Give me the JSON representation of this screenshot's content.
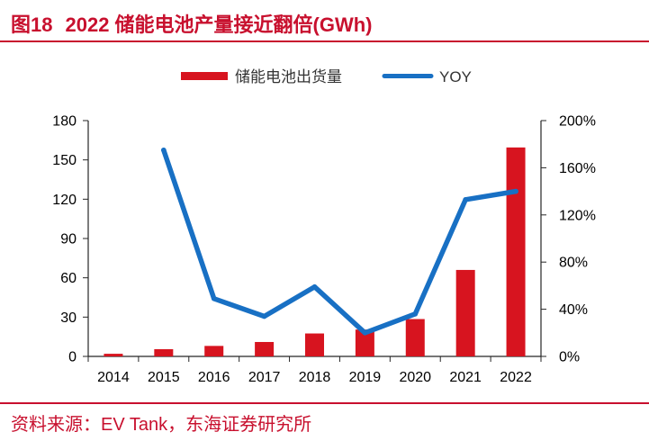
{
  "header": {
    "figure_label": "图18",
    "title": "2022 储能电池产量接近翻倍(GWh)"
  },
  "footer": {
    "source": "资料来源：EV Tank，东海证券研究所"
  },
  "colors": {
    "bar": "#d7141f",
    "line": "#1870c4",
    "title": "#c8102e"
  },
  "chart_data": {
    "type": "bar+line",
    "categories": [
      "2014",
      "2015",
      "2016",
      "2017",
      "2018",
      "2019",
      "2020",
      "2021",
      "2022"
    ],
    "series": [
      {
        "name": "储能电池出货量",
        "type": "bar",
        "axis": "left",
        "values": [
          2.0,
          5.5,
          8.0,
          11.0,
          17.5,
          20.5,
          28.5,
          66.0,
          159.5
        ]
      },
      {
        "name": "YOY",
        "type": "line",
        "axis": "right",
        "values": [
          null,
          1.75,
          0.49,
          0.34,
          0.59,
          0.2,
          0.36,
          1.33,
          1.4
        ]
      }
    ],
    "left_axis": {
      "min": 0,
      "max": 180,
      "ticks": [
        "0",
        "30",
        "60",
        "90",
        "120",
        "150",
        "180"
      ]
    },
    "right_axis": {
      "min": 0,
      "max": 2.0,
      "ticks": [
        "0%",
        "40%",
        "80%",
        "120%",
        "160%",
        "200%"
      ]
    },
    "legend_position": "top-center"
  }
}
